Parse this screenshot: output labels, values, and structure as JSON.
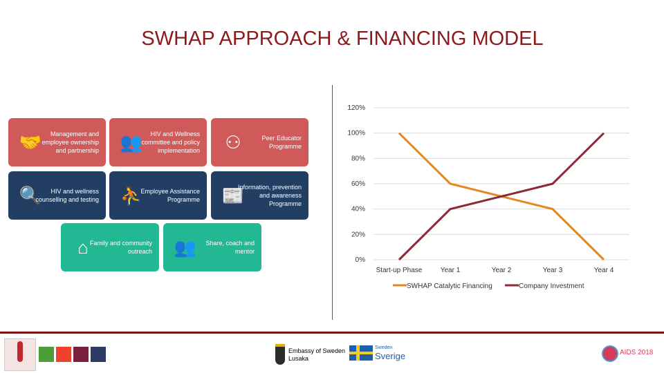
{
  "title": "SWHAP APPROACH & FINANCING MODEL",
  "tiles": [
    {
      "text": "Management and employee ownership and partnership",
      "color": "#d05a5a",
      "icon": "handshake-icon"
    },
    {
      "text": "HIV and Wellness committee and policy implementation",
      "color": "#d05a5a",
      "icon": "group-icon"
    },
    {
      "text": "Peer Educator Programme",
      "color": "#d05a5a",
      "icon": "network-people-icon"
    },
    {
      "text": "HIV and wellness counselling and testing",
      "color": "#233e63",
      "icon": "magnifier-drop-icon"
    },
    {
      "text": "Employee Assistance Programme",
      "color": "#233e63",
      "icon": "stairs-help-icon"
    },
    {
      "text": "Information, prevention and awareness Programme",
      "color": "#233e63",
      "icon": "newspaper-icon"
    },
    {
      "text": "Family and community outreach",
      "color": "#22b894",
      "icon": "family-house-icon"
    },
    {
      "text": "Share, coach and mentor",
      "color": "#22b894",
      "icon": "team-circle-icon"
    }
  ],
  "chart_data": {
    "type": "line",
    "categories": [
      "Start-up Phase",
      "Year 1",
      "Year 2",
      "Year 3",
      "Year 4"
    ],
    "ylim": [
      0,
      120
    ],
    "yticks": [
      "0%",
      "20%",
      "40%",
      "60%",
      "80%",
      "100%",
      "120%"
    ],
    "grid": true,
    "legend": "bottom",
    "series": [
      {
        "name": "SWHAP Catalytic Financing",
        "values": [
          100,
          60,
          50,
          40,
          0
        ],
        "color": "#e8861e"
      },
      {
        "name": "Company Investment",
        "values": [
          0,
          40,
          50,
          60,
          100
        ],
        "color": "#8b2a35"
      }
    ]
  },
  "footer": {
    "embassy": "Embassy of Sweden",
    "embassy_city": "Lusaka",
    "sweden_small": "Sweden",
    "sweden": "Sverige",
    "aids": "AIDS 2018"
  }
}
